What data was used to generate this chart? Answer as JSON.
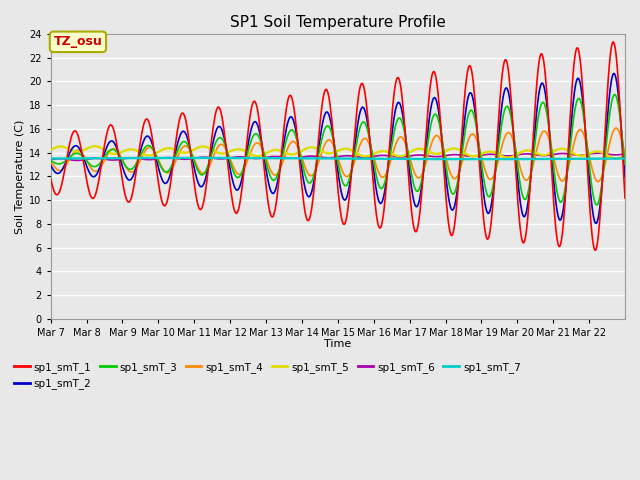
{
  "title": "SP1 Soil Temperature Profile",
  "xlabel": "Time",
  "ylabel": "Soil Temperature (C)",
  "ylim": [
    0,
    24
  ],
  "xtick_labels": [
    "Mar 7",
    "Mar 8",
    "Mar 9",
    "Mar 10",
    "Mar 11",
    "Mar 12",
    "Mar 13",
    "Mar 14",
    "Mar 15",
    "Mar 16",
    "Mar 17",
    "Mar 18",
    "Mar 19",
    "Mar 20",
    "Mar 21",
    "Mar 22"
  ],
  "annotation_text": "TZ_osu",
  "annotation_color": "#cc0000",
  "annotation_bg": "#ffffcc",
  "annotation_border": "#aaaa00",
  "colors": {
    "sp1_smT_1": "#ff0000",
    "sp1_smT_2": "#0000cc",
    "sp1_smT_3": "#00cc00",
    "sp1_smT_4": "#ff8800",
    "sp1_smT_5": "#dddd00",
    "sp1_smT_6": "#aa00aa",
    "sp1_smT_7": "#00cccc"
  },
  "bg_color": "#e8e8e8",
  "plot_bg": "#e8e8e8",
  "grid_color": "#ffffff",
  "n_days": 16,
  "points_per_day": 48,
  "base_temp": 13.5,
  "lw": 1.2,
  "figsize": [
    6.4,
    4.8
  ],
  "dpi": 100
}
